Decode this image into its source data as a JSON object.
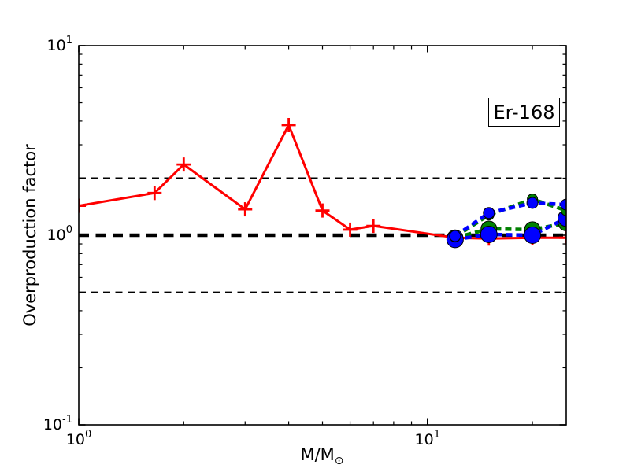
{
  "figure": {
    "ylabel": "Overproduction factor",
    "xlabel_main": "M/M",
    "xlabel_sub": "⊙",
    "annotation": "Er-168"
  },
  "colors": {
    "red": "#ff0000",
    "blue": "#0000ff",
    "green": "#008000",
    "black": "#000000",
    "background": "#ffffff"
  },
  "chart_data": {
    "type": "line",
    "title": "",
    "xlabel": "M/M⊙",
    "ylabel": "Overproduction factor",
    "annotation": {
      "text": "Er-168",
      "position": "upper-right"
    },
    "xscale": "log",
    "yscale": "log",
    "xlim": [
      1,
      25
    ],
    "ylim": [
      0.1,
      10
    ],
    "grid": false,
    "legend": "none",
    "x_major_ticks": [
      {
        "value": 1,
        "label": "10^0"
      },
      {
        "value": 10,
        "label": "10^1"
      }
    ],
    "x_minor_ticks": [
      2,
      3,
      4,
      5,
      6,
      7,
      8,
      9,
      20
    ],
    "y_major_ticks": [
      {
        "value": 0.1,
        "label": "10^-1"
      },
      {
        "value": 1,
        "label": "10^0"
      },
      {
        "value": 10,
        "label": "10^1"
      }
    ],
    "y_minor_ticks": [
      0.2,
      0.3,
      0.4,
      0.5,
      0.6,
      0.7,
      0.8,
      0.9,
      2,
      3,
      4,
      5,
      6,
      7,
      8,
      9
    ],
    "reference_lines": [
      {
        "y": 2.0,
        "color": "#000000",
        "style": "dashed-thin"
      },
      {
        "y": 0.5,
        "color": "#000000",
        "style": "dashed-thin"
      },
      {
        "y": 1.0,
        "color": "#000000",
        "style": "dashed-thick"
      }
    ],
    "series": [
      {
        "name": "red-solid-plus",
        "color": "#ff0000",
        "linestyle": "solid",
        "line_width": 3,
        "marker": "plus",
        "marker_size": 9,
        "x": [
          1.0,
          1.65,
          2.0,
          3.0,
          4.0,
          5.0,
          6.0,
          7.0,
          12.0,
          15.0,
          20.0,
          25.0
        ],
        "y": [
          1.43,
          1.67,
          2.36,
          1.37,
          3.81,
          1.35,
          1.07,
          1.12,
          0.97,
          0.96,
          0.97,
          0.97
        ]
      },
      {
        "name": "green-dashed-large-circle",
        "color": "#008000",
        "linestyle": "dashed",
        "line_width": 4.5,
        "marker": "circle",
        "marker_radius": 10,
        "x": [
          12.0,
          15.0,
          20.0,
          25.0
        ],
        "y": [
          0.97,
          1.08,
          1.07,
          1.16
        ]
      },
      {
        "name": "blue-dashed-large-circle",
        "color": "#0000ff",
        "linestyle": "dashed",
        "line_width": 4.5,
        "marker": "circle",
        "marker_radius": 10.5,
        "x": [
          12.0,
          15.0,
          20.0,
          25.0
        ],
        "y": [
          0.95,
          1.01,
          1.0,
          1.23
        ]
      },
      {
        "name": "green-dashed-small-circle",
        "color": "#008000",
        "linestyle": "dashed",
        "line_width": 4.5,
        "marker": "circle",
        "marker_radius": 6.5,
        "x": [
          12.0,
          15.0,
          20.0,
          25.0
        ],
        "y": [
          0.98,
          1.28,
          1.55,
          1.35
        ]
      },
      {
        "name": "blue-dashed-small-circle",
        "color": "#0000ff",
        "linestyle": "dashed",
        "line_width": 4.5,
        "marker": "circle",
        "marker_radius": 7,
        "x": [
          12.0,
          15.0,
          20.0,
          25.0
        ],
        "y": [
          0.99,
          1.31,
          1.48,
          1.45
        ]
      }
    ]
  }
}
